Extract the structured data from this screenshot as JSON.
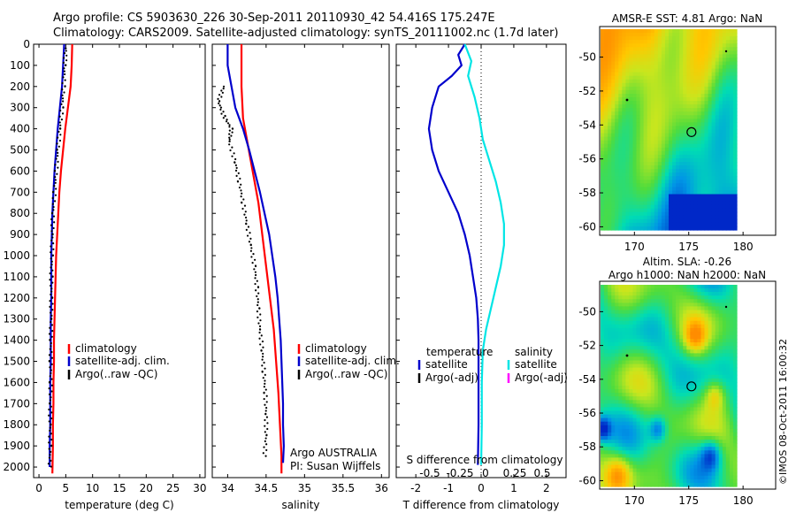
{
  "titles": {
    "line1": "Argo profile: CS 5903630_226 30-Sep-2011 20110930_42 54.416S 175.247E",
    "line2": "Climatology: CARS2009. Satellite-adjusted climatology: synTS_20111002.nc (1.7d later)"
  },
  "colors": {
    "climatology": "#ff0000",
    "satellite": "#0000cc",
    "argo": "#000000",
    "cyan": "#00e5e5",
    "magenta": "#ff00ff"
  },
  "chart_data": [
    {
      "type": "line",
      "xlabel": "temperature (deg C)",
      "ylabel": "",
      "xlim": [
        -1,
        31
      ],
      "ylim": [
        2050,
        0
      ],
      "xticks": [
        "0",
        "5",
        "10",
        "15",
        "20",
        "25",
        "30"
      ],
      "xtick_values": [
        0,
        5,
        10,
        15,
        20,
        25,
        30
      ],
      "yticks": [
        "0",
        "100",
        "200",
        "300",
        "400",
        "500",
        "600",
        "700",
        "800",
        "900",
        "1000",
        "1100",
        "1200",
        "1300",
        "1400",
        "1500",
        "1600",
        "1700",
        "1800",
        "1900",
        "2000"
      ],
      "legend": [
        "climatology",
        "satellite-adj. clim.",
        "Argo(..raw -QC)"
      ],
      "series": [
        {
          "name": "climatology",
          "color": "#ff0000",
          "style": "solid",
          "points": [
            [
              6.2,
              0
            ],
            [
              6.1,
              100
            ],
            [
              5.9,
              200
            ],
            [
              5.4,
              300
            ],
            [
              4.9,
              400
            ],
            [
              4.5,
              500
            ],
            [
              4.1,
              600
            ],
            [
              3.8,
              700
            ],
            [
              3.6,
              800
            ],
            [
              3.4,
              900
            ],
            [
              3.2,
              1000
            ],
            [
              3.1,
              1100
            ],
            [
              3.0,
              1200
            ],
            [
              2.9,
              1300
            ],
            [
              2.8,
              1400
            ],
            [
              2.8,
              1500
            ],
            [
              2.7,
              1600
            ],
            [
              2.7,
              1700
            ],
            [
              2.6,
              1800
            ],
            [
              2.6,
              1900
            ],
            [
              2.5,
              2030
            ]
          ]
        },
        {
          "name": "satellite-adj. clim.",
          "color": "#0000cc",
          "style": "solid",
          "points": [
            [
              4.7,
              0
            ],
            [
              4.5,
              100
            ],
            [
              4.3,
              200
            ],
            [
              3.9,
              300
            ],
            [
              3.5,
              400
            ],
            [
              3.2,
              500
            ],
            [
              2.9,
              600
            ],
            [
              2.7,
              700
            ],
            [
              2.5,
              800
            ],
            [
              2.4,
              900
            ],
            [
              2.3,
              1000
            ],
            [
              2.3,
              1100
            ],
            [
              2.3,
              1200
            ],
            [
              2.2,
              1300
            ],
            [
              2.2,
              1400
            ],
            [
              2.2,
              1500
            ],
            [
              2.1,
              1600
            ],
            [
              2.1,
              1700
            ],
            [
              2.1,
              1800
            ],
            [
              2.0,
              1900
            ],
            [
              2.0,
              2000
            ]
          ]
        },
        {
          "name": "Argo(..raw -QC)",
          "color": "#000000",
          "style": "dots",
          "points": [
            [
              5.0,
              20
            ],
            [
              4.8,
              100
            ],
            [
              4.6,
              200
            ],
            [
              4.3,
              300
            ],
            [
              3.9,
              400
            ],
            [
              3.5,
              500
            ],
            [
              3.2,
              600
            ],
            [
              2.9,
              700
            ],
            [
              2.6,
              800
            ],
            [
              2.5,
              900
            ],
            [
              2.4,
              1000
            ],
            [
              2.3,
              1100
            ],
            [
              2.3,
              1200
            ],
            [
              2.3,
              1300
            ],
            [
              2.2,
              1400
            ],
            [
              2.2,
              1500
            ],
            [
              2.2,
              1600
            ],
            [
              2.1,
              1700
            ],
            [
              2.1,
              1800
            ],
            [
              2.1,
              1900
            ],
            [
              2.0,
              2000
            ]
          ]
        }
      ]
    },
    {
      "type": "line",
      "xlabel": "salinity",
      "ylabel": "",
      "xlim": [
        33.8,
        36.1
      ],
      "ylim": [
        2050,
        0
      ],
      "xticks": [
        "34",
        "34.5",
        "35",
        "35.5",
        "36"
      ],
      "xtick_values": [
        34,
        34.5,
        35,
        35.5,
        36
      ],
      "legend": [
        "climatology",
        "satellite-adj. clim.",
        "Argo(..raw -QC)"
      ],
      "annotation": [
        "Argo AUSTRALIA",
        "PI: Susan Wijffels"
      ],
      "series": [
        {
          "name": "climatology",
          "color": "#ff0000",
          "style": "solid",
          "points": [
            [
              34.18,
              0
            ],
            [
              34.18,
              200
            ],
            [
              34.2,
              350
            ],
            [
              34.25,
              450
            ],
            [
              34.3,
              550
            ],
            [
              34.35,
              650
            ],
            [
              34.4,
              750
            ],
            [
              34.45,
              900
            ],
            [
              34.5,
              1050
            ],
            [
              34.55,
              1200
            ],
            [
              34.6,
              1350
            ],
            [
              34.63,
              1500
            ],
            [
              34.66,
              1650
            ],
            [
              34.68,
              1800
            ],
            [
              34.7,
              1950
            ],
            [
              34.7,
              2030
            ]
          ]
        },
        {
          "name": "satellite-adj. clim.",
          "color": "#0000cc",
          "style": "solid",
          "points": [
            [
              34.0,
              0
            ],
            [
              34.0,
              100
            ],
            [
              34.05,
              200
            ],
            [
              34.1,
              300
            ],
            [
              34.2,
              400
            ],
            [
              34.28,
              500
            ],
            [
              34.35,
              600
            ],
            [
              34.42,
              700
            ],
            [
              34.48,
              800
            ],
            [
              34.54,
              900
            ],
            [
              34.58,
              1000
            ],
            [
              34.62,
              1100
            ],
            [
              34.65,
              1200
            ],
            [
              34.67,
              1300
            ],
            [
              34.69,
              1400
            ],
            [
              34.7,
              1500
            ],
            [
              34.71,
              1600
            ],
            [
              34.72,
              1700
            ],
            [
              34.72,
              1800
            ],
            [
              34.73,
              1900
            ],
            [
              34.72,
              1980
            ]
          ]
        },
        {
          "name": "Argo(..raw -QC)",
          "color": "#000000",
          "style": "dots",
          "points": [
            [
              33.95,
              200
            ],
            [
              33.88,
              270
            ],
            [
              33.95,
              340
            ],
            [
              34.05,
              400
            ],
            [
              34.02,
              460
            ],
            [
              34.1,
              560
            ],
            [
              34.15,
              650
            ],
            [
              34.2,
              750
            ],
            [
              34.25,
              850
            ],
            [
              34.3,
              950
            ],
            [
              34.35,
              1050
            ],
            [
              34.38,
              1150
            ],
            [
              34.4,
              1250
            ],
            [
              34.42,
              1350
            ],
            [
              34.45,
              1450
            ],
            [
              34.47,
              1550
            ],
            [
              34.49,
              1650
            ],
            [
              34.5,
              1750
            ],
            [
              34.5,
              1850
            ],
            [
              34.48,
              1950
            ]
          ]
        }
      ]
    },
    {
      "type": "line",
      "xlabel": "T difference from climatology",
      "xlabel_top": "S difference from climatology",
      "ylabel": "",
      "xlim": [
        -2.6,
        2.6
      ],
      "ylim": [
        2050,
        0
      ],
      "xticks": [
        "-2",
        "-1",
        "0",
        "1",
        "2"
      ],
      "xtick_values": [
        -2,
        -1,
        0,
        1,
        2
      ],
      "xticks_top": [
        "-0.5",
        "-0.25",
        "0",
        "0.25",
        "0.5"
      ],
      "legend_left": [
        "temperature",
        "satellite",
        "Argo(-adj)"
      ],
      "legend_right": [
        "salinity",
        "satellite",
        "Argo(-adj)"
      ],
      "series": [
        {
          "name": "temperature satellite",
          "color": "#0000cc",
          "style": "solid",
          "points": [
            [
              -0.5,
              0
            ],
            [
              -0.7,
              50
            ],
            [
              -0.6,
              100
            ],
            [
              -0.9,
              150
            ],
            [
              -1.3,
              200
            ],
            [
              -1.5,
              300
            ],
            [
              -1.6,
              400
            ],
            [
              -1.5,
              500
            ],
            [
              -1.3,
              600
            ],
            [
              -1.0,
              700
            ],
            [
              -0.7,
              800
            ],
            [
              -0.5,
              900
            ],
            [
              -0.35,
              1000
            ],
            [
              -0.25,
              1100
            ],
            [
              -0.15,
              1200
            ],
            [
              -0.1,
              1300
            ],
            [
              -0.08,
              1400
            ],
            [
              -0.08,
              1600
            ],
            [
              -0.08,
              1800
            ],
            [
              -0.1,
              1990
            ]
          ]
        },
        {
          "name": "salinity satellite",
          "color": "#00e5e5",
          "style": "solid",
          "points": [
            [
              -0.5,
              0
            ],
            [
              -0.3,
              80
            ],
            [
              -0.4,
              150
            ],
            [
              -0.2,
              250
            ],
            [
              -0.05,
              350
            ],
            [
              0.05,
              450
            ],
            [
              0.25,
              550
            ],
            [
              0.45,
              650
            ],
            [
              0.6,
              750
            ],
            [
              0.7,
              850
            ],
            [
              0.7,
              950
            ],
            [
              0.6,
              1050
            ],
            [
              0.45,
              1150
            ],
            [
              0.3,
              1250
            ],
            [
              0.15,
              1350
            ],
            [
              0.05,
              1450
            ],
            [
              0.02,
              1600
            ],
            [
              0.02,
              1800
            ],
            [
              0.0,
              1990
            ]
          ]
        }
      ]
    },
    {
      "type": "heatmap",
      "title": "AMSR-E SST: 4.81  Argo: NaN",
      "xticks": [
        "170",
        "175",
        "180"
      ],
      "yticks": [
        "-50",
        "-52",
        "-54",
        "-56",
        "-58",
        "-60"
      ],
      "xlim": [
        166.8,
        183.0
      ],
      "ylim": [
        -60.5,
        -48.2
      ],
      "marker": {
        "lon": 175.25,
        "lat": -54.42
      }
    },
    {
      "type": "heatmap",
      "title": "Altim. SLA: -0.26",
      "subtitle": "Argo h1000: NaN h2000: NaN",
      "xticks": [
        "170",
        "175",
        "180"
      ],
      "yticks": [
        "-50",
        "-52",
        "-54",
        "-56",
        "-58",
        "-60"
      ],
      "xlim": [
        166.8,
        183.0
      ],
      "ylim": [
        -60.5,
        -48.2
      ],
      "marker": {
        "lon": 175.25,
        "lat": -54.42
      }
    }
  ],
  "stamp": "©IMOS 08-Oct-2011 16:00:32"
}
